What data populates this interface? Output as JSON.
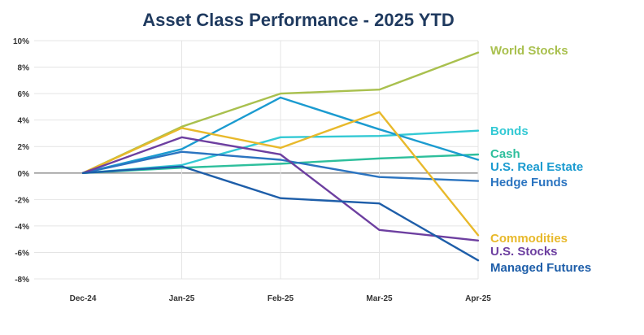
{
  "chart_data": {
    "type": "line",
    "title": "Asset Class Performance - 2025 YTD",
    "xlabel": "",
    "ylabel": "",
    "categories": [
      "Dec-24",
      "Jan-25",
      "Feb-25",
      "Mar-25",
      "Apr-25"
    ],
    "ylim": [
      -8,
      10
    ],
    "yticks": [
      10,
      8,
      6,
      4,
      2,
      0,
      -2,
      -4,
      -6,
      -8
    ],
    "ytick_labels": [
      "10%",
      "8%",
      "6%",
      "4%",
      "2%",
      "0%",
      "-2%",
      "-4%",
      "-6%",
      "-8%"
    ],
    "grid": "horizontal",
    "legend": "right-end labels",
    "series": [
      {
        "name": "World Stocks",
        "color": "#a9c04e",
        "values": [
          0,
          3.5,
          6.0,
          6.3,
          9.1
        ]
      },
      {
        "name": "Bonds",
        "color": "#33c9d4",
        "values": [
          0,
          0.6,
          2.7,
          2.8,
          3.2
        ]
      },
      {
        "name": "Cash",
        "color": "#2ebf9c",
        "values": [
          0,
          0.4,
          0.7,
          1.1,
          1.4
        ]
      },
      {
        "name": "U.S. Real Estate",
        "color": "#1b9bd0",
        "values": [
          0,
          1.8,
          5.7,
          3.3,
          1.0
        ]
      },
      {
        "name": "Hedge Funds",
        "color": "#2b74c0",
        "values": [
          0,
          1.6,
          1.0,
          -0.3,
          -0.6
        ]
      },
      {
        "name": "Commodities",
        "color": "#e8b92b",
        "values": [
          0,
          3.4,
          1.9,
          4.6,
          -4.7
        ]
      },
      {
        "name": "U.S. Stocks",
        "color": "#6d3fa0",
        "values": [
          0,
          2.7,
          1.4,
          -4.3,
          -5.1
        ]
      },
      {
        "name": "Managed Futures",
        "color": "#1e5ea9",
        "values": [
          0,
          0.5,
          -1.9,
          -2.3,
          -6.6
        ]
      }
    ]
  }
}
